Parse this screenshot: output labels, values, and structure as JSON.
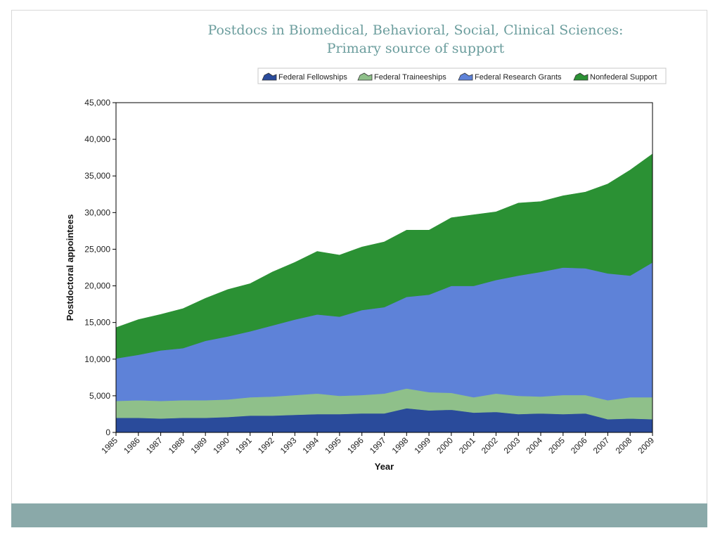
{
  "slide": {
    "title_line1": "Postdocs in Biomedical, Behavioral, Social, Clinical Sciences:",
    "title_line2": "Primary source of support"
  },
  "chart_data": {
    "type": "area",
    "stacked": true,
    "title": "Postdocs in Biomedical, Behavioral, Social, Clinical Sciences: Primary source of support",
    "xlabel": "Year",
    "ylabel": "Postdoctoral appointees",
    "ylim": [
      0,
      45000
    ],
    "yticks": [
      0,
      5000,
      10000,
      15000,
      20000,
      25000,
      30000,
      35000,
      40000,
      45000
    ],
    "ytick_labels": [
      "0",
      "5,000",
      "10,000",
      "15,000",
      "20,000",
      "25,000",
      "30,000",
      "35,000",
      "40,000",
      "45,000"
    ],
    "x": [
      "1985",
      "1986",
      "1987",
      "1988",
      "1989",
      "1990",
      "1991",
      "1992",
      "1993",
      "1994",
      "1995",
      "1996",
      "1997",
      "1998",
      "1999",
      "2000",
      "2001",
      "2002",
      "2003",
      "2004",
      "2005",
      "2006",
      "2007",
      "2008",
      "2009"
    ],
    "legend_position": "top-right",
    "grid": false,
    "series": [
      {
        "name": "Federal Fellowships",
        "color": "#2a4b9b",
        "values": [
          2000,
          2000,
          1900,
          2000,
          2000,
          2100,
          2300,
          2300,
          2400,
          2500,
          2500,
          2600,
          2600,
          3300,
          3000,
          3100,
          2700,
          2800,
          2500,
          2600,
          2500,
          2600,
          1800,
          1900,
          1800
        ]
      },
      {
        "name": "Federal Traineeships",
        "color": "#8fc08a",
        "values": [
          2300,
          2400,
          2400,
          2400,
          2400,
          2400,
          2500,
          2600,
          2700,
          2800,
          2500,
          2500,
          2700,
          2700,
          2500,
          2300,
          2100,
          2500,
          2500,
          2300,
          2600,
          2500,
          2600,
          2900,
          3000
        ]
      },
      {
        "name": "Federal Research Grants",
        "color": "#5e82d8",
        "values": [
          5800,
          6200,
          6900,
          7100,
          8100,
          8600,
          9000,
          9700,
          10300,
          10800,
          10800,
          11600,
          11800,
          12500,
          13300,
          14600,
          15200,
          15500,
          16400,
          17000,
          17400,
          17300,
          17300,
          16600,
          18400
        ]
      },
      {
        "name": "Nonfederal Support",
        "color": "#2b9134",
        "values": [
          4200,
          4800,
          4900,
          5400,
          5800,
          6400,
          6500,
          7300,
          7800,
          8600,
          8400,
          8600,
          8900,
          9100,
          8800,
          9300,
          9700,
          9300,
          9900,
          9600,
          9800,
          10400,
          12200,
          14400,
          14800
        ]
      }
    ]
  }
}
